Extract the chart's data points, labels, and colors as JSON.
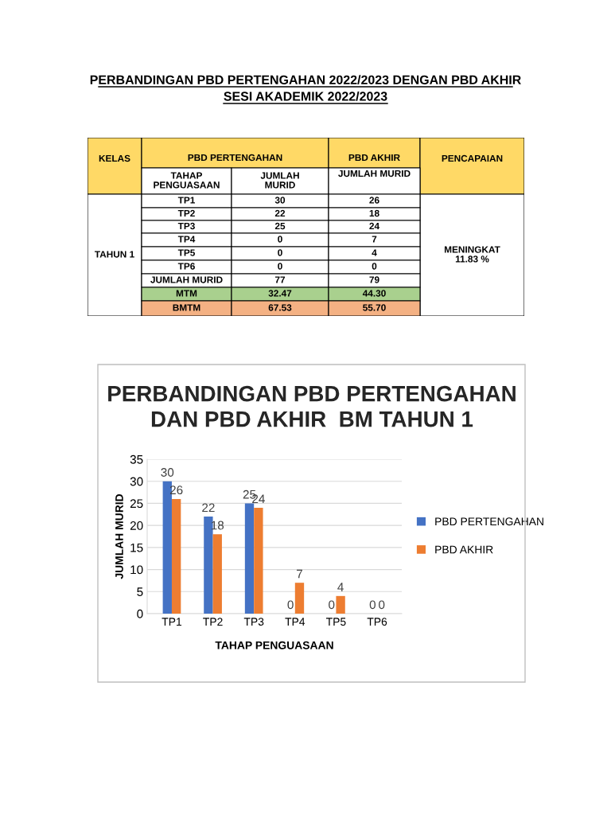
{
  "chart_data": [
    {
      "type": "other",
      "title": "PERBANDINGAN PBD PERTENGAHAN 2022/2023 DENGAN PBD AKHIR\nSESI AKADEMIK 2022/2023",
      "colors": [
        "#ffd966",
        "#a9d08e",
        "#f4b183"
      ],
      "annotations": [
        "KELAS",
        "PBD PERTENGAHAN",
        "PBD AKHIR",
        "PENCAPAIAN",
        "TAHAP\nPENGUASAAN",
        "JUMLAH\nMURID",
        "JUMLAH MURID",
        "TAHUN 1",
        "MENINGKAT\n11.83 %",
        "TP1",
        "30",
        "26",
        "TP2",
        "22",
        "18",
        "TP3",
        "25",
        "24",
        "TP4",
        "0",
        "7",
        "TP5",
        "0",
        "4",
        "TP6",
        "0",
        "0",
        "JUMLAH MURID",
        "77",
        "79",
        "MTM",
        "32.47",
        "44.30",
        "BMTM",
        "67.53",
        "55.70"
      ]
    },
    {
      "type": "bar",
      "title": "PERBANDINGAN PBD PERTENGAHAN\nDAN PBD AKHIR  BM TAHUN 1",
      "xlabel": "TAHAP PENGUASAAN",
      "ylabel": "JUMLAH MURID",
      "categories": [
        "TP1",
        "TP2",
        "TP3",
        "TP4",
        "TP5",
        "TP6"
      ],
      "series": [
        {
          "name": "PBD PERTENGAHAN",
          "color": "#4472c4",
          "values": [
            30,
            22,
            25,
            0,
            0,
            0
          ]
        },
        {
          "name": "PBD AKHIR",
          "color": "#ed7d31",
          "values": [
            26,
            18,
            24,
            7,
            4,
            0
          ]
        }
      ],
      "ylim": [
        0,
        35
      ],
      "yticks": [
        0,
        5,
        10,
        15,
        20,
        25,
        30,
        35
      ],
      "grid": "y",
      "legend": "right",
      "data_labels": true
    }
  ]
}
